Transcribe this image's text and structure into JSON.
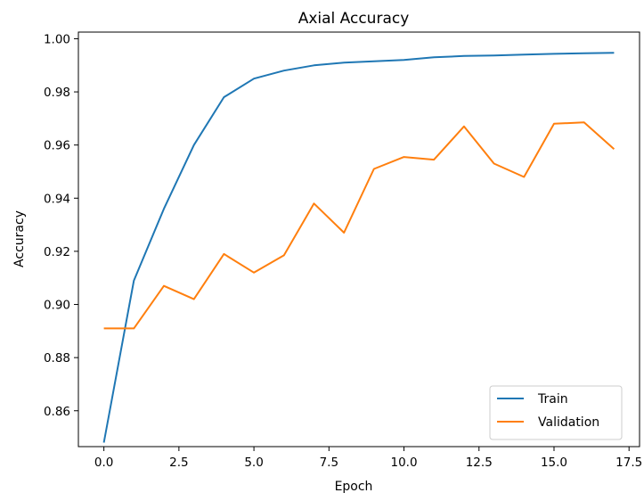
{
  "chart_data": {
    "type": "line",
    "title": "Axial Accuracy",
    "xlabel": "Epoch",
    "ylabel": "Accuracy",
    "xlim": [
      -0.85,
      17.85
    ],
    "ylim": [
      0.8465,
      1.0025
    ],
    "xticks": [
      0.0,
      2.5,
      5.0,
      7.5,
      10.0,
      12.5,
      15.0,
      17.5
    ],
    "xtick_labels": [
      "0.0",
      "2.5",
      "5.0",
      "7.5",
      "10.0",
      "12.5",
      "15.0",
      "17.5"
    ],
    "yticks": [
      0.86,
      0.88,
      0.9,
      0.92,
      0.94,
      0.96,
      0.98,
      1.0
    ],
    "ytick_labels": [
      "0.86",
      "0.88",
      "0.90",
      "0.92",
      "0.94",
      "0.96",
      "0.98",
      "1.00"
    ],
    "grid": false,
    "legend_position": "lower-right",
    "x": [
      0,
      1,
      2,
      3,
      4,
      5,
      6,
      7,
      8,
      9,
      10,
      11,
      12,
      13,
      14,
      15,
      16,
      17
    ],
    "series": [
      {
        "name": "Train",
        "color": "#1f77b4",
        "values": [
          0.848,
          0.909,
          0.936,
          0.96,
          0.978,
          0.985,
          0.988,
          0.99,
          0.991,
          0.9915,
          0.992,
          0.993,
          0.9935,
          0.9937,
          0.994,
          0.9943,
          0.9945,
          0.9947
        ]
      },
      {
        "name": "Validation",
        "color": "#ff7f0e",
        "values": [
          0.891,
          0.891,
          0.907,
          0.902,
          0.919,
          0.912,
          0.9185,
          0.938,
          0.927,
          0.951,
          0.9555,
          0.9545,
          0.967,
          0.953,
          0.948,
          0.968,
          0.9685,
          0.9585
        ]
      }
    ]
  }
}
